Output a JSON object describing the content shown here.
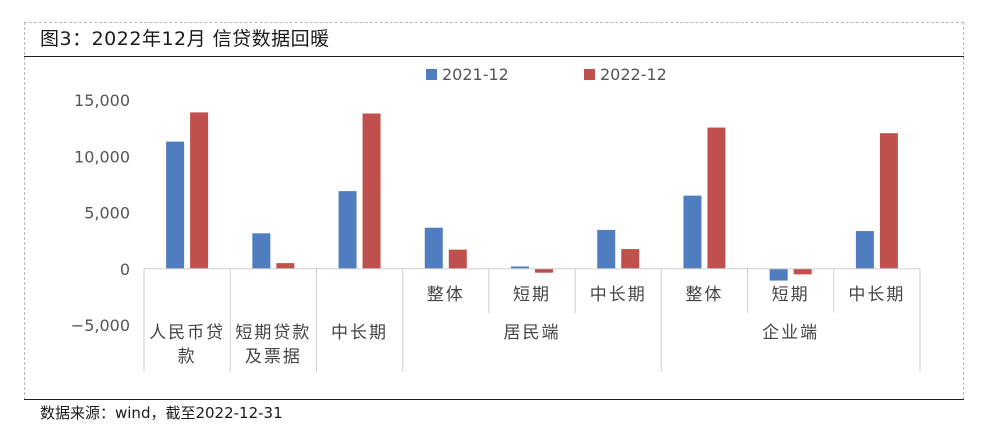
{
  "figure": {
    "title": "图3：2022年12月 信贷数据回暖",
    "source": "数据来源：wind，截至2022-12-31"
  },
  "colors": {
    "series_2021": "#4f7dbf",
    "series_2022": "#c0504d"
  },
  "chart_data": {
    "type": "bar",
    "categories": [
      "人民币贷款",
      "短期贷款及票据",
      "中长期",
      "居民端-整体",
      "居民端-短期",
      "居民端-中长期",
      "企业端-整体",
      "企业端-短期",
      "企业端-中长期"
    ],
    "tick_labels": [
      [
        "人民币贷",
        "款"
      ],
      [
        "短期贷款",
        "及票据"
      ],
      [
        "中长期"
      ],
      [
        "整体"
      ],
      [
        "短期"
      ],
      [
        "中长期"
      ],
      [
        "整体"
      ],
      [
        "短期"
      ],
      [
        "中长期"
      ]
    ],
    "group_labels": [
      "居民端",
      "企业端"
    ],
    "series": [
      {
        "name": "2021-12",
        "values": [
          11300,
          3150,
          6900,
          3650,
          200,
          3450,
          6500,
          -1050,
          3350
        ]
      },
      {
        "name": "2022-12",
        "values": [
          13900,
          500,
          13800,
          1700,
          -350,
          1750,
          12550,
          -500,
          12050
        ]
      }
    ],
    "y_ticks": [
      "15,000",
      "10,000",
      "5,000",
      "0",
      "−5,000"
    ],
    "ylim": [
      -5000,
      15000
    ],
    "legend_position": "top",
    "grid": false
  }
}
